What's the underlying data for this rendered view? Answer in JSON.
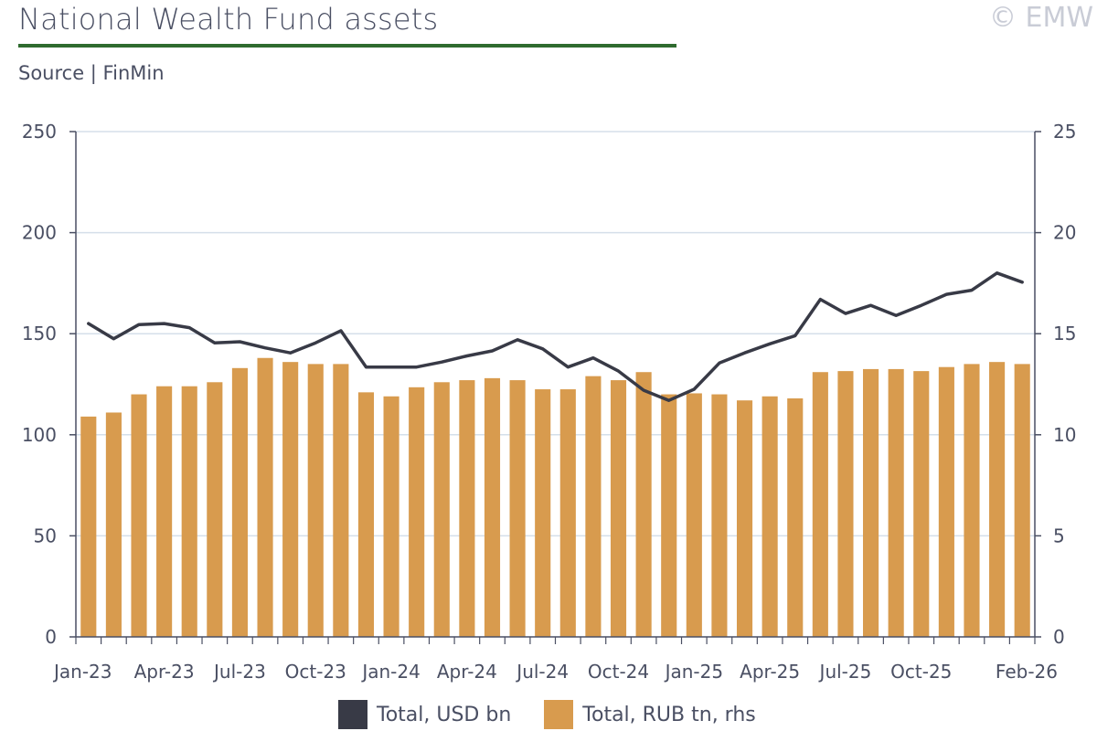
{
  "header": {
    "title": "National Wealth Fund assets",
    "source": "Source | FinMin",
    "copyright": "© EMW"
  },
  "colors": {
    "line": "#383a46",
    "bar": "#d89b4e",
    "accent_rule": "#2f6b2f",
    "grid": "#d5dfea",
    "axis": "#4a4f63"
  },
  "legend": [
    {
      "label": "Total, USD bn",
      "color": "#383a46"
    },
    {
      "label": "Total, RUB tn, rhs",
      "color": "#d89b4e"
    }
  ],
  "chart_data": {
    "type": "bar+line",
    "x": [
      "Jan-23",
      "Feb-23",
      "Mar-23",
      "Apr-23",
      "May-23",
      "Jun-23",
      "Jul-23",
      "Aug-23",
      "Sep-23",
      "Oct-23",
      "Nov-23",
      "Dec-23",
      "Jan-24",
      "Feb-24",
      "Mar-24",
      "Apr-24",
      "May-24",
      "Jun-24",
      "Jul-24",
      "Aug-24",
      "Sep-24",
      "Oct-24",
      "Nov-24",
      "Dec-24",
      "Jan-25",
      "Feb-25",
      "Mar-25",
      "Apr-25",
      "May-25",
      "Jun-25",
      "Jul-25",
      "Aug-25",
      "Sep-25",
      "Oct-25",
      "Nov-25",
      "Dec-25",
      "Jan-26",
      "Feb-26"
    ],
    "x_tick_labels": [
      "Jan-23",
      "Apr-23",
      "Jul-23",
      "Oct-23",
      "Jan-24",
      "Apr-24",
      "Jul-24",
      "Oct-24",
      "Jan-25",
      "Apr-25",
      "Jul-25",
      "Oct-25",
      "Feb-26"
    ],
    "series": [
      {
        "name": "Total, RUB tn, rhs",
        "kind": "bar",
        "axis": "right",
        "values": [
          10.9,
          11.1,
          12.0,
          12.4,
          12.4,
          12.6,
          13.3,
          13.8,
          13.6,
          13.5,
          13.5,
          12.1,
          11.9,
          12.35,
          12.6,
          12.7,
          12.8,
          12.7,
          12.25,
          12.25,
          12.9,
          12.7,
          13.1,
          12.0,
          12.05,
          12.0,
          11.7,
          11.9,
          11.8,
          13.1,
          13.15,
          13.25,
          13.25,
          13.15,
          13.35,
          13.5,
          13.6,
          13.5
        ]
      },
      {
        "name": "Total, USD bn",
        "kind": "line",
        "axis": "left",
        "values": [
          155,
          147.5,
          154.5,
          155,
          153,
          145.5,
          146,
          143,
          140.5,
          145.5,
          151.5,
          133.5,
          133.5,
          133.5,
          136,
          139,
          141.5,
          147,
          142.5,
          133.5,
          138,
          131.5,
          122,
          117,
          122.5,
          135.5,
          140.5,
          145,
          149,
          167,
          160,
          164,
          159,
          164,
          169.5,
          171.5,
          180,
          175.5
        ]
      }
    ],
    "y_left": {
      "min": 0,
      "max": 250,
      "ticks": [
        0,
        50,
        100,
        150,
        200,
        250
      ]
    },
    "y_right": {
      "min": 0,
      "max": 25,
      "ticks": [
        0,
        5,
        10,
        15,
        20,
        25
      ]
    },
    "grid": true,
    "legend_position": "bottom"
  }
}
